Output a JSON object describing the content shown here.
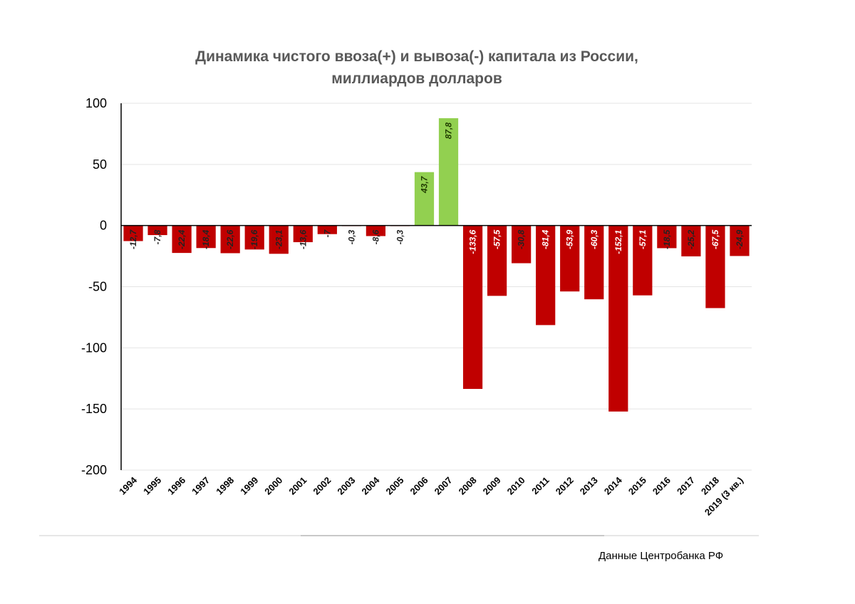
{
  "chart_data": {
    "type": "bar",
    "title": "Динамика чистого ввоза(+) и вывоза(-) капитала из России,",
    "subtitle": "миллиардов долларов",
    "xlabel": "",
    "ylabel": "",
    "ylim": [
      -200,
      100
    ],
    "yticks": [
      100,
      50,
      0,
      -50,
      -100,
      -150,
      -200
    ],
    "yticklabels": [
      "100",
      "50",
      "0",
      "-50",
      "-100",
      "-150",
      "-200"
    ],
    "grid": true,
    "categories": [
      "1994",
      "1995",
      "1996",
      "1997",
      "1998",
      "1999",
      "2000",
      "2001",
      "2002",
      "2003",
      "2004",
      "2005",
      "2006",
      "2007",
      "2008",
      "2009",
      "2010",
      "2011",
      "2012",
      "2013",
      "2014",
      "2015",
      "2016",
      "2017",
      "2018",
      "2019 (3 кв.)"
    ],
    "values": [
      -12.7,
      -7.8,
      -22.4,
      -18.4,
      -22.6,
      -19.6,
      -23.1,
      -13.6,
      -7,
      -0.3,
      -8.6,
      -0.3,
      43.7,
      87.8,
      -133.6,
      -57.5,
      -30.8,
      -81.4,
      -53.9,
      -60.3,
      -152.1,
      -57.1,
      -18.5,
      -25.2,
      -67.5,
      -24.9
    ],
    "data_labels": [
      "-12,7",
      "-7,8",
      "-22,4",
      "-18,4",
      "-22,6",
      "-19,6",
      "-23,1",
      "-13,6",
      "-7",
      "-0,3",
      "-8,6",
      "-0,3",
      "43,7",
      "87,8",
      "-133,6",
      "-57,5",
      "-30,8",
      "-81,4",
      "-53,9",
      "-60,3",
      "-152,1",
      "-57,1",
      "-18,5",
      "-25,2",
      "-67,5",
      "-24,9"
    ],
    "colors": {
      "positive": "#92d050",
      "negative": "#c00000"
    }
  },
  "source": "Данные Центробанка РФ"
}
